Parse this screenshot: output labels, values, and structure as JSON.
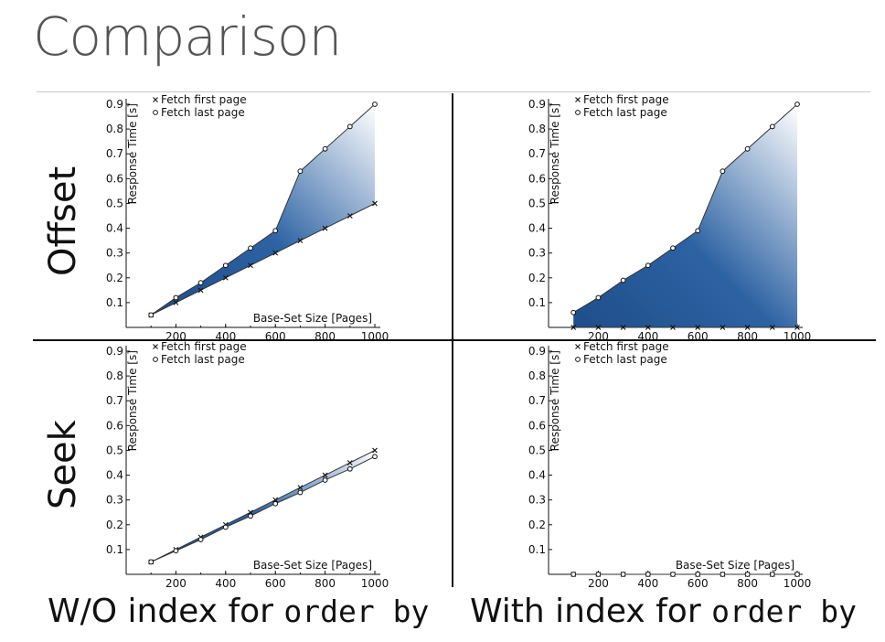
{
  "slide": {
    "title": "Comparison",
    "row_labels": [
      "Offset",
      "Seek"
    ],
    "col_labels": [
      {
        "prefix": "W/O index for ",
        "code": "order by"
      },
      {
        "prefix": "With index for ",
        "code": "order by"
      }
    ]
  },
  "colors": {
    "fill_dark": "#1f4e8a",
    "fill_light": "#ffffff",
    "line": "#333333",
    "divider": "#111111"
  },
  "chart_data": [
    {
      "type": "line",
      "panel": "offset-without-index",
      "xlabel": "Base-Set Size [Pages]",
      "ylabel": "Response Time [s]",
      "xlim": [
        0,
        1000
      ],
      "ylim": [
        0,
        0.9
      ],
      "xticks": [
        "200",
        "400",
        "600",
        "800",
        "1000"
      ],
      "yticks": [
        "0.1",
        "0.2",
        "0.3",
        "0.4",
        "0.5",
        "0.6",
        "0.7",
        "0.8",
        "0.9"
      ],
      "legend_position": "top-left",
      "fill": "between",
      "x": [
        100,
        200,
        300,
        400,
        500,
        600,
        700,
        800,
        900,
        1000
      ],
      "series": [
        {
          "name": "Fetch first page",
          "marker": "x",
          "values": [
            0.05,
            0.1,
            0.15,
            0.2,
            0.25,
            0.3,
            0.35,
            0.4,
            0.45,
            0.5
          ]
        },
        {
          "name": "Fetch last page",
          "marker": "o",
          "values": [
            0.05,
            0.12,
            0.18,
            0.25,
            0.32,
            0.39,
            0.63,
            0.72,
            0.81,
            0.9
          ]
        }
      ]
    },
    {
      "type": "line",
      "panel": "offset-with-index",
      "xlabel": "Base-Set Size [Pages]",
      "ylabel": "Response Time [s]",
      "xlim": [
        0,
        1000
      ],
      "ylim": [
        0,
        0.9
      ],
      "xticks": [
        "200",
        "400",
        "600",
        "800",
        "1000"
      ],
      "yticks": [
        "0.1",
        "0.2",
        "0.3",
        "0.4",
        "0.5",
        "0.6",
        "0.7",
        "0.8",
        "0.9"
      ],
      "legend_position": "top-left",
      "fill": "between",
      "x": [
        100,
        200,
        300,
        400,
        500,
        600,
        700,
        800,
        900,
        1000
      ],
      "series": [
        {
          "name": "Fetch first page",
          "marker": "x",
          "values": [
            0,
            0,
            0,
            0,
            0,
            0,
            0,
            0,
            0,
            0
          ]
        },
        {
          "name": "Fetch last page",
          "marker": "o",
          "values": [
            0.06,
            0.12,
            0.19,
            0.25,
            0.32,
            0.39,
            0.63,
            0.72,
            0.81,
            0.9
          ]
        }
      ]
    },
    {
      "type": "line",
      "panel": "seek-without-index",
      "xlabel": "Base-Set Size [Pages]",
      "ylabel": "Response Time [s]",
      "xlim": [
        0,
        1000
      ],
      "ylim": [
        0,
        0.9
      ],
      "xticks": [
        "200",
        "400",
        "600",
        "800",
        "1000"
      ],
      "yticks": [
        "0.1",
        "0.2",
        "0.3",
        "0.4",
        "0.5",
        "0.6",
        "0.7",
        "0.8",
        "0.9"
      ],
      "legend_position": "top-left",
      "fill": "between",
      "x": [
        100,
        200,
        300,
        400,
        500,
        600,
        700,
        800,
        900,
        1000
      ],
      "series": [
        {
          "name": "Fetch first page",
          "marker": "x",
          "values": [
            0.05,
            0.1,
            0.15,
            0.2,
            0.25,
            0.3,
            0.35,
            0.4,
            0.45,
            0.5
          ]
        },
        {
          "name": "Fetch last page",
          "marker": "o",
          "values": [
            0.05,
            0.095,
            0.14,
            0.19,
            0.235,
            0.285,
            0.33,
            0.38,
            0.425,
            0.475
          ]
        }
      ]
    },
    {
      "type": "line",
      "panel": "seek-with-index",
      "xlabel": "Base-Set Size [Pages]",
      "ylabel": "Response Time [s]",
      "xlim": [
        0,
        1000
      ],
      "ylim": [
        0,
        0.9
      ],
      "xticks": [
        "200",
        "400",
        "600",
        "800",
        "1000"
      ],
      "yticks": [
        "0.1",
        "0.2",
        "0.3",
        "0.4",
        "0.5",
        "0.6",
        "0.7",
        "0.8",
        "0.9"
      ],
      "legend_position": "top-left",
      "fill": "none",
      "x": [
        100,
        200,
        300,
        400,
        500,
        600,
        700,
        800,
        900,
        1000
      ],
      "series": [
        {
          "name": "Fetch first page",
          "marker": "x",
          "values": [
            0,
            0,
            0,
            0,
            0,
            0,
            0,
            0,
            0,
            0
          ]
        },
        {
          "name": "Fetch last page",
          "marker": "o",
          "values": [
            0,
            0,
            0,
            0,
            0,
            0,
            0,
            0,
            0,
            0
          ]
        }
      ]
    }
  ]
}
